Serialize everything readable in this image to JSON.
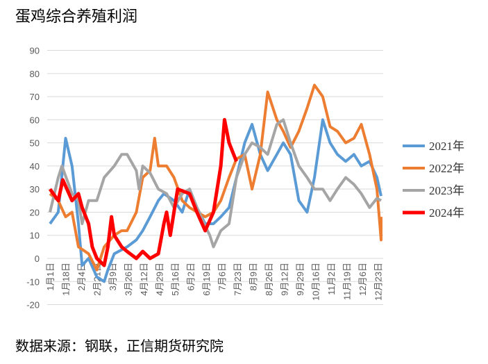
{
  "title": "蛋鸡综合养殖利润",
  "source": "数据来源：钢联，正信期货研究院",
  "chart_data": {
    "type": "line",
    "ylim": [
      -20,
      90
    ],
    "yticks": [
      -20,
      -10,
      0,
      10,
      20,
      30,
      40,
      50,
      60,
      70,
      80,
      90
    ],
    "grid": true,
    "legend": "right",
    "xticks": [
      "1月1日",
      "1月18日",
      "2月4日",
      "2月21日",
      "3月9日",
      "3月26日",
      "4月12日",
      "4月29日",
      "5月16日",
      "6月2日",
      "6月19日",
      "7月6日",
      "7月23日",
      "8月9日",
      "8月26日",
      "9月12日",
      "9月29日",
      "10月16日",
      "11月2日",
      "11月19日",
      "12月6日",
      "12月23日"
    ],
    "series": [
      {
        "name": "2021年",
        "color": "#5B9BD5",
        "points": [
          [
            "01-01",
            15
          ],
          [
            "01-10",
            20
          ],
          [
            "01-18",
            52
          ],
          [
            "01-25",
            40
          ],
          [
            "02-01",
            15
          ],
          [
            "02-05",
            -3
          ],
          [
            "02-12",
            0
          ],
          [
            "02-21",
            -8
          ],
          [
            "03-01",
            -10
          ],
          [
            "03-05",
            -5
          ],
          [
            "03-12",
            2
          ],
          [
            "03-26",
            5
          ],
          [
            "04-05",
            8
          ],
          [
            "04-12",
            12
          ],
          [
            "04-20",
            18
          ],
          [
            "04-29",
            25
          ],
          [
            "05-05",
            28
          ],
          [
            "05-16",
            25
          ],
          [
            "05-25",
            20
          ],
          [
            "06-02",
            30
          ],
          [
            "06-10",
            22
          ],
          [
            "06-19",
            15
          ],
          [
            "06-28",
            15
          ],
          [
            "07-06",
            18
          ],
          [
            "07-15",
            22
          ],
          [
            "07-23",
            35
          ],
          [
            "08-01",
            50
          ],
          [
            "08-09",
            58
          ],
          [
            "08-18",
            45
          ],
          [
            "08-26",
            38
          ],
          [
            "09-05",
            45
          ],
          [
            "09-12",
            50
          ],
          [
            "09-20",
            45
          ],
          [
            "09-29",
            25
          ],
          [
            "10-08",
            20
          ],
          [
            "10-16",
            35
          ],
          [
            "10-25",
            60
          ],
          [
            "11-02",
            50
          ],
          [
            "11-10",
            45
          ],
          [
            "11-19",
            42
          ],
          [
            "11-28",
            45
          ],
          [
            "12-06",
            40
          ],
          [
            "12-15",
            42
          ],
          [
            "12-23",
            35
          ],
          [
            "12-31",
            27
          ]
        ]
      },
      {
        "name": "2022年",
        "color": "#ED7D31",
        "points": [
          [
            "01-01",
            28
          ],
          [
            "01-10",
            25
          ],
          [
            "01-18",
            18
          ],
          [
            "01-25",
            20
          ],
          [
            "02-01",
            5
          ],
          [
            "02-12",
            2
          ],
          [
            "02-21",
            -5
          ],
          [
            "03-01",
            5
          ],
          [
            "03-12",
            10
          ],
          [
            "03-20",
            12
          ],
          [
            "03-26",
            12
          ],
          [
            "04-05",
            20
          ],
          [
            "04-12",
            35
          ],
          [
            "04-20",
            38
          ],
          [
            "04-25",
            52
          ],
          [
            "04-29",
            40
          ],
          [
            "05-08",
            40
          ],
          [
            "05-16",
            35
          ],
          [
            "05-25",
            25
          ],
          [
            "06-02",
            22
          ],
          [
            "06-19",
            18
          ],
          [
            "06-28",
            20
          ],
          [
            "07-06",
            25
          ],
          [
            "07-15",
            35
          ],
          [
            "07-23",
            43
          ],
          [
            "08-01",
            45
          ],
          [
            "08-09",
            30
          ],
          [
            "08-18",
            45
          ],
          [
            "08-26",
            72
          ],
          [
            "09-05",
            60
          ],
          [
            "09-12",
            55
          ],
          [
            "09-20",
            48
          ],
          [
            "09-29",
            55
          ],
          [
            "10-08",
            65
          ],
          [
            "10-16",
            75
          ],
          [
            "10-25",
            70
          ],
          [
            "11-02",
            57
          ],
          [
            "11-10",
            55
          ],
          [
            "11-19",
            50
          ],
          [
            "11-28",
            52
          ],
          [
            "12-06",
            58
          ],
          [
            "12-15",
            45
          ],
          [
            "12-23",
            30
          ],
          [
            "12-28",
            8
          ],
          [
            "12-31",
            18
          ]
        ]
      },
      {
        "name": "2023年",
        "color": "#A5A5A5",
        "points": [
          [
            "01-01",
            20
          ],
          [
            "01-10",
            35
          ],
          [
            "01-14",
            40
          ],
          [
            "01-25",
            28
          ],
          [
            "02-01",
            25
          ],
          [
            "02-05",
            15
          ],
          [
            "02-12",
            25
          ],
          [
            "02-21",
            25
          ],
          [
            "03-01",
            35
          ],
          [
            "03-12",
            40
          ],
          [
            "03-20",
            45
          ],
          [
            "03-26",
            45
          ],
          [
            "04-05",
            38
          ],
          [
            "04-08",
            30
          ],
          [
            "04-12",
            40
          ],
          [
            "04-20",
            37
          ],
          [
            "04-29",
            30
          ],
          [
            "05-08",
            28
          ],
          [
            "05-16",
            22
          ],
          [
            "05-25",
            28
          ],
          [
            "06-02",
            30
          ],
          [
            "06-10",
            22
          ],
          [
            "06-19",
            14
          ],
          [
            "06-24",
            10
          ],
          [
            "06-28",
            5
          ],
          [
            "07-06",
            12
          ],
          [
            "07-15",
            15
          ],
          [
            "07-23",
            35
          ],
          [
            "08-01",
            45
          ],
          [
            "08-09",
            50
          ],
          [
            "08-18",
            48
          ],
          [
            "08-26",
            45
          ],
          [
            "09-05",
            58
          ],
          [
            "09-12",
            60
          ],
          [
            "09-20",
            50
          ],
          [
            "09-29",
            40
          ],
          [
            "10-08",
            35
          ],
          [
            "10-16",
            30
          ],
          [
            "10-25",
            30
          ],
          [
            "11-02",
            25
          ],
          [
            "11-10",
            30
          ],
          [
            "11-19",
            35
          ],
          [
            "11-28",
            32
          ],
          [
            "12-06",
            28
          ],
          [
            "12-15",
            22
          ],
          [
            "12-23",
            26
          ],
          [
            "12-31",
            25
          ]
        ]
      },
      {
        "name": "2024年",
        "color": "#FF0000",
        "points": [
          [
            "01-01",
            30
          ],
          [
            "01-10",
            25
          ],
          [
            "01-15",
            34
          ],
          [
            "01-25",
            25
          ],
          [
            "02-01",
            28
          ],
          [
            "02-05",
            22
          ],
          [
            "02-12",
            15
          ],
          [
            "02-16",
            5
          ],
          [
            "02-21",
            0
          ],
          [
            "03-01",
            -3
          ],
          [
            "03-05",
            5
          ],
          [
            "03-09",
            18
          ],
          [
            "03-12",
            10
          ],
          [
            "03-20",
            5
          ],
          [
            "03-26",
            3
          ],
          [
            "04-05",
            0
          ],
          [
            "04-12",
            3
          ],
          [
            "04-20",
            0
          ],
          [
            "04-29",
            2
          ],
          [
            "05-05",
            15
          ],
          [
            "05-08",
            20
          ],
          [
            "05-12",
            10
          ],
          [
            "05-20",
            30
          ],
          [
            "06-02",
            28
          ],
          [
            "06-10",
            20
          ],
          [
            "06-19",
            12
          ],
          [
            "06-28",
            20
          ],
          [
            "07-06",
            40
          ],
          [
            "07-10",
            60
          ],
          [
            "07-15",
            50
          ],
          [
            "07-20",
            45
          ],
          [
            "07-23",
            42
          ]
        ]
      }
    ]
  }
}
